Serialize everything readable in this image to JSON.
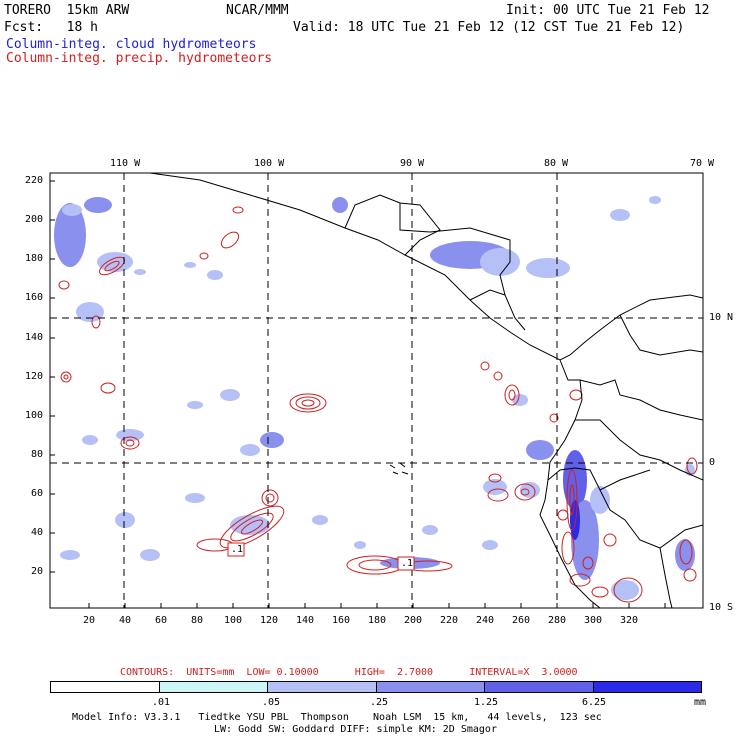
{
  "header": {
    "model": "TORERO  15km ARW",
    "org": "NCAR/MMM",
    "init": "Init: 00 UTC Tue 21 Feb 12",
    "fcst": "Fcst:   18 h",
    "valid": "Valid: 18 UTC Tue 21 Feb 12 (12 CST Tue 21 Feb 12)",
    "legend_cloud": "Column-integ. cloud hydrometeors",
    "legend_precip": "Column-integ. precip. hydrometeors"
  },
  "axes": {
    "top_lon": [
      "110 W",
      "100 W",
      "90 W",
      "80 W",
      "70 W"
    ],
    "right_lat": [
      "10 N",
      "0",
      "10 S"
    ],
    "x_ticks": [
      "20",
      "40",
      "60",
      "80",
      "100",
      "120",
      "140",
      "160",
      "180",
      "200",
      "220",
      "240",
      "260",
      "280",
      "300",
      "320"
    ],
    "y_ticks": [
      "220",
      "200",
      "180",
      "160",
      "140",
      "120",
      "100",
      "80",
      "60",
      "40",
      "20"
    ]
  },
  "contour_info": {
    "label": "CONTOURS:  UNITS=mm  LOW= 0.10000      HIGH=  2.7000      INTERVAL=X  3.0000"
  },
  "colorbar": {
    "labels": [
      ".01",
      ".05",
      ".25",
      "1.25",
      "6.25"
    ],
    "units": "mm",
    "colors": [
      "#ffffff",
      "#ccf6f8",
      "#b4c0f6",
      "#8a90ee",
      "#6060e8",
      "#2a2ae8"
    ]
  },
  "contour_markers": [
    ".1",
    ".1"
  ],
  "footer": {
    "line1": "Model Info: V3.3.1   Tiedtke YSU PBL  Thompson    Noah LSM  15 km,   44 levels,  123 sec",
    "line2": "LW: Godd SW: Goddard DIFF: simple KM: 2D Smagor"
  }
}
